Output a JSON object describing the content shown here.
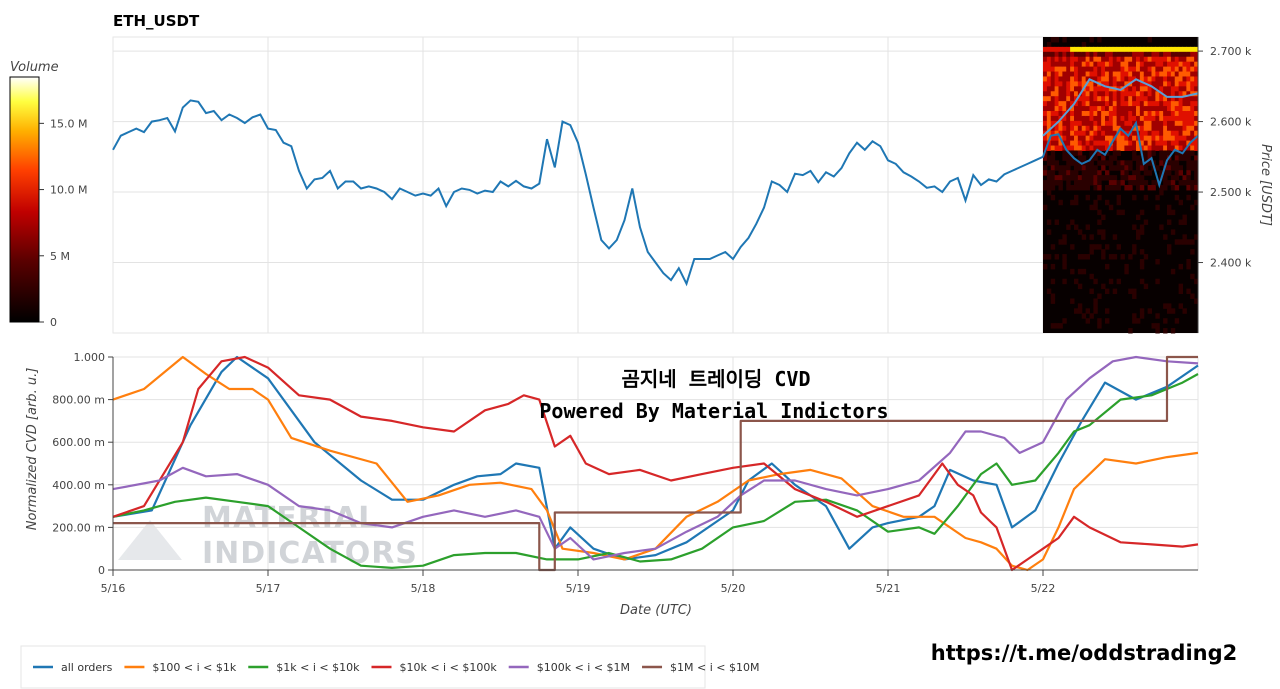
{
  "chart_data": [
    {
      "type": "line",
      "title": "ETH_USDT",
      "ylabel": "Price [USDT]",
      "ylim": [
        2300,
        2720
      ],
      "yticks": [
        "2.400 k",
        "2.500 k",
        "2.600 k",
        "2.700 k"
      ],
      "ytick_values": [
        2400,
        2500,
        2600,
        2700
      ],
      "xlim": [
        0,
        7
      ],
      "grid": true,
      "series": [
        {
          "color": "#1f77b4",
          "x": [
            0.0,
            0.05,
            0.1,
            0.15,
            0.2,
            0.25,
            0.3,
            0.35,
            0.4,
            0.45,
            0.5,
            0.55,
            0.6,
            0.65,
            0.7,
            0.75,
            0.8,
            0.85,
            0.9,
            0.95,
            1.0,
            1.05,
            1.1,
            1.15,
            1.2,
            1.25,
            1.3,
            1.35,
            1.4,
            1.45,
            1.5,
            1.55,
            1.6,
            1.65,
            1.7,
            1.75,
            1.8,
            1.85,
            1.9,
            1.95,
            2.0,
            2.05,
            2.1,
            2.15,
            2.2,
            2.25,
            2.3,
            2.35,
            2.4,
            2.45,
            2.5,
            2.55,
            2.6,
            2.65,
            2.7,
            2.75,
            2.8,
            2.85,
            2.9,
            2.95,
            3.0,
            3.05,
            3.1,
            3.15,
            3.2,
            3.25,
            3.3,
            3.35,
            3.4,
            3.45,
            3.5,
            3.55,
            3.6,
            3.65,
            3.7,
            3.75,
            3.8,
            3.85,
            3.9,
            3.95,
            4.0,
            4.05,
            4.1,
            4.15,
            4.2,
            4.25,
            4.3,
            4.35,
            4.4,
            4.45,
            4.5,
            4.55,
            4.6,
            4.65,
            4.7,
            4.75,
            4.8,
            4.85,
            4.9,
            4.95,
            5.0,
            5.05,
            5.1,
            5.15,
            5.2,
            5.25,
            5.3,
            5.35,
            5.4,
            5.45,
            5.5,
            5.55,
            5.6,
            5.65,
            5.7,
            5.75,
            5.8,
            5.85,
            5.9,
            5.95,
            6.0,
            6.05,
            6.1,
            6.15,
            6.2,
            6.25,
            6.3,
            6.35,
            6.4,
            6.45,
            6.5,
            6.55,
            6.6,
            6.65,
            6.7,
            6.75,
            6.8,
            6.85,
            6.9,
            6.95,
            7.0
          ],
          "y": [
            2560,
            2580,
            2585,
            2590,
            2585,
            2600,
            2602,
            2605,
            2586,
            2620,
            2630,
            2628,
            2612,
            2615,
            2602,
            2610,
            2605,
            2598,
            2606,
            2610,
            2590,
            2588,
            2570,
            2565,
            2530,
            2505,
            2518,
            2520,
            2530,
            2505,
            2515,
            2515,
            2505,
            2508,
            2505,
            2500,
            2490,
            2505,
            2500,
            2495,
            2498,
            2495,
            2505,
            2480,
            2500,
            2505,
            2503,
            2498,
            2502,
            2500,
            2515,
            2508,
            2516,
            2508,
            2505,
            2512,
            2575,
            2535,
            2600,
            2595,
            2570,
            2525,
            2478,
            2432,
            2420,
            2432,
            2460,
            2505,
            2450,
            2415,
            2400,
            2385,
            2375,
            2392,
            2370,
            2405,
            2405,
            2405,
            2410,
            2415,
            2405,
            2422,
            2435,
            2455,
            2478,
            2515,
            2510,
            2500,
            2526,
            2524,
            2530,
            2514,
            2528,
            2522,
            2534,
            2555,
            2570,
            2560,
            2572,
            2565,
            2545,
            2540,
            2528,
            2522,
            2515,
            2506,
            2508,
            2500,
            2515,
            2520,
            2488,
            2524,
            2510,
            2518,
            2515,
            2525,
            2530,
            2535,
            2540,
            2545,
            2550,
            2580,
            2582,
            2560,
            2548,
            2540,
            2545,
            2560,
            2553,
            2572,
            2590,
            2580,
            2598,
            2540,
            2548,
            2510,
            2545,
            2560,
            2555,
            2570,
            2580
          ]
        }
      ],
      "heatmap_colorbar": {
        "label": "Volume",
        "ticks": [
          "0",
          "5 M",
          "10.0 M",
          "15.0 M"
        ],
        "tick_values": [
          0,
          5,
          10,
          15
        ],
        "max": 18.5
      },
      "heatmap_overlay": {
        "x_start": 6.0,
        "x_end": 7.0,
        "description_series_x": [
          6.0,
          6.1,
          6.2,
          6.3,
          6.4,
          6.5,
          6.6,
          6.7,
          6.8,
          6.9,
          7.0
        ],
        "description_series_y": [
          2580,
          2600,
          2625,
          2660,
          2650,
          2645,
          2660,
          2650,
          2635,
          2635,
          2640
        ]
      }
    },
    {
      "type": "line",
      "xlabel": "Date (UTC)",
      "ylabel": "Normalized CVD [arb. u.]",
      "categories": [
        "5/16",
        "5/17",
        "5/18",
        "5/19",
        "5/20",
        "5/21",
        "5/22"
      ],
      "xlim": [
        0,
        7
      ],
      "ylim": [
        0,
        1
      ],
      "yticks": [
        "0",
        "200.00 m",
        "400.00 m",
        "600.00 m",
        "800.00 m",
        "1.000"
      ],
      "ytick_values": [
        0,
        0.2,
        0.4,
        0.6,
        0.8,
        1.0
      ],
      "grid": true,
      "legend_position": "bottom",
      "series": [
        {
          "name": "all orders",
          "color": "#1f77b4",
          "x": [
            0,
            0.25,
            0.5,
            0.7,
            0.8,
            1.0,
            1.3,
            1.6,
            1.8,
            2.0,
            2.2,
            2.35,
            2.5,
            2.6,
            2.75,
            2.85,
            2.95,
            3.1,
            3.3,
            3.5,
            3.7,
            3.9,
            4.0,
            4.1,
            4.25,
            4.4,
            4.6,
            4.75,
            4.9,
            5.0,
            5.2,
            5.3,
            5.4,
            5.55,
            5.7,
            5.8,
            5.95,
            6.1,
            6.25,
            6.4,
            6.6,
            6.8,
            7.0
          ],
          "y": [
            0.25,
            0.28,
            0.68,
            0.93,
            1.0,
            0.9,
            0.6,
            0.42,
            0.33,
            0.33,
            0.4,
            0.44,
            0.45,
            0.5,
            0.48,
            0.1,
            0.2,
            0.1,
            0.05,
            0.07,
            0.13,
            0.23,
            0.28,
            0.42,
            0.5,
            0.4,
            0.3,
            0.1,
            0.2,
            0.22,
            0.25,
            0.3,
            0.47,
            0.42,
            0.4,
            0.2,
            0.28,
            0.5,
            0.7,
            0.88,
            0.8,
            0.86,
            0.96
          ]
        },
        {
          "name": "$100 < i < $1k",
          "color": "#ff7f0e",
          "x": [
            0,
            0.2,
            0.45,
            0.6,
            0.75,
            0.9,
            1.0,
            1.15,
            1.4,
            1.7,
            1.9,
            2.1,
            2.3,
            2.5,
            2.7,
            2.8,
            2.9,
            3.1,
            3.3,
            3.5,
            3.7,
            3.9,
            4.1,
            4.3,
            4.5,
            4.7,
            4.9,
            5.1,
            5.3,
            5.5,
            5.6,
            5.7,
            5.8,
            5.9,
            6.0,
            6.1,
            6.2,
            6.4,
            6.6,
            6.8,
            7.0
          ],
          "y": [
            0.8,
            0.85,
            1.0,
            0.92,
            0.85,
            0.85,
            0.8,
            0.62,
            0.56,
            0.5,
            0.32,
            0.35,
            0.4,
            0.41,
            0.38,
            0.28,
            0.1,
            0.08,
            0.05,
            0.1,
            0.25,
            0.32,
            0.42,
            0.45,
            0.47,
            0.43,
            0.3,
            0.25,
            0.25,
            0.15,
            0.13,
            0.1,
            0.02,
            0.0,
            0.05,
            0.2,
            0.38,
            0.52,
            0.5,
            0.53,
            0.55
          ]
        },
        {
          "name": "$1k < i < $10k",
          "color": "#2ca02c",
          "x": [
            0,
            0.2,
            0.4,
            0.6,
            0.8,
            1.0,
            1.2,
            1.4,
            1.6,
            1.8,
            2.0,
            2.2,
            2.4,
            2.6,
            2.8,
            3.0,
            3.2,
            3.4,
            3.6,
            3.8,
            4.0,
            4.2,
            4.4,
            4.6,
            4.8,
            5.0,
            5.2,
            5.3,
            5.45,
            5.6,
            5.7,
            5.8,
            5.95,
            6.1,
            6.2,
            6.3,
            6.5,
            6.7,
            6.9,
            7.0
          ],
          "y": [
            0.25,
            0.28,
            0.32,
            0.34,
            0.32,
            0.3,
            0.2,
            0.1,
            0.02,
            0.01,
            0.02,
            0.07,
            0.08,
            0.08,
            0.05,
            0.05,
            0.08,
            0.04,
            0.05,
            0.1,
            0.2,
            0.23,
            0.32,
            0.33,
            0.28,
            0.18,
            0.2,
            0.17,
            0.3,
            0.45,
            0.5,
            0.4,
            0.42,
            0.55,
            0.65,
            0.68,
            0.8,
            0.82,
            0.88,
            0.92
          ]
        },
        {
          "name": "$10k < i < $100k",
          "color": "#d62728",
          "x": [
            0,
            0.2,
            0.45,
            0.55,
            0.7,
            0.85,
            1.0,
            1.2,
            1.4,
            1.6,
            1.8,
            2.0,
            2.2,
            2.4,
            2.55,
            2.65,
            2.75,
            2.85,
            2.95,
            3.05,
            3.2,
            3.4,
            3.6,
            3.8,
            4.0,
            4.2,
            4.4,
            4.6,
            4.8,
            5.0,
            5.2,
            5.35,
            5.45,
            5.55,
            5.6,
            5.7,
            5.8,
            5.9,
            6.0,
            6.1,
            6.2,
            6.3,
            6.5,
            6.7,
            6.9,
            7.0
          ],
          "y": [
            0.25,
            0.3,
            0.6,
            0.85,
            0.98,
            1.0,
            0.95,
            0.82,
            0.8,
            0.72,
            0.7,
            0.67,
            0.65,
            0.75,
            0.78,
            0.82,
            0.8,
            0.58,
            0.63,
            0.5,
            0.45,
            0.47,
            0.42,
            0.45,
            0.48,
            0.5,
            0.38,
            0.32,
            0.25,
            0.3,
            0.35,
            0.5,
            0.4,
            0.35,
            0.27,
            0.2,
            0.0,
            0.05,
            0.1,
            0.15,
            0.25,
            0.2,
            0.13,
            0.12,
            0.11,
            0.12
          ]
        },
        {
          "name": "$100k < i < $1M",
          "color": "#9467bd",
          "x": [
            0,
            0.3,
            0.45,
            0.6,
            0.8,
            1.0,
            1.2,
            1.4,
            1.6,
            1.8,
            2.0,
            2.2,
            2.4,
            2.6,
            2.75,
            2.85,
            2.95,
            3.1,
            3.3,
            3.5,
            3.7,
            3.9,
            4.05,
            4.2,
            4.4,
            4.6,
            4.8,
            5.0,
            5.2,
            5.4,
            5.5,
            5.6,
            5.75,
            5.85,
            6.0,
            6.15,
            6.3,
            6.45,
            6.6,
            6.8,
            7.0
          ],
          "y": [
            0.38,
            0.42,
            0.48,
            0.44,
            0.45,
            0.4,
            0.3,
            0.28,
            0.22,
            0.2,
            0.25,
            0.28,
            0.25,
            0.28,
            0.25,
            0.1,
            0.15,
            0.05,
            0.08,
            0.1,
            0.18,
            0.25,
            0.35,
            0.42,
            0.42,
            0.38,
            0.35,
            0.38,
            0.42,
            0.55,
            0.65,
            0.65,
            0.62,
            0.55,
            0.6,
            0.8,
            0.9,
            0.98,
            1.0,
            0.98,
            0.97
          ]
        },
        {
          "name": "$1M < i < $10M",
          "color": "#8c564b",
          "x": [
            0,
            2.75,
            2.75,
            2.85,
            2.85,
            3.0,
            3.0,
            4.05,
            4.05,
            6.8,
            6.8,
            7.0
          ],
          "y": [
            0.22,
            0.22,
            0.0,
            0.0,
            0.27,
            0.27,
            0.27,
            0.27,
            0.7,
            0.7,
            1.0,
            1.0
          ],
          "step": true
        }
      ]
    }
  ],
  "overlay_text": {
    "line1": "곰지네 트레이딩 CVD",
    "line2": "Powered By Material Indictors",
    "url": "https://t.me/oddstrading2"
  },
  "watermark": {
    "line1": "MATERIAL",
    "line2": "INDICATORS"
  }
}
